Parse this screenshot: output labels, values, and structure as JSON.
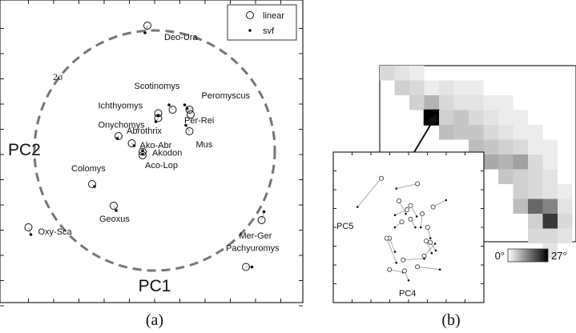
{
  "chart_data": [
    {
      "panel": "(a)",
      "type": "scatter",
      "title": "",
      "xlabel": "PC1",
      "ylabel": "PC2",
      "xlim": [
        -1.0,
        1.0
      ],
      "ylim": [
        -1.0,
        1.0
      ],
      "grid": false,
      "legend_position": "top-right",
      "annotation": "2σ",
      "series": [
        {
          "name": "linear",
          "marker": "open-circle"
        },
        {
          "name": "svf",
          "marker": "dot"
        }
      ],
      "points": [
        {
          "label": "Deo-Ura",
          "linear": [
            -0.06,
            1.04
          ],
          "svf": [
            -0.08,
            0.98
          ]
        },
        {
          "label": "Scotinomys",
          "linear": [
            0.15,
            0.34
          ],
          "svf": [
            0.12,
            0.38
          ]
        },
        {
          "label": "Peromyscus",
          "linear": [
            0.29,
            0.34
          ],
          "svf": [
            0.25,
            0.38
          ]
        },
        {
          "label": "Ichthyomys",
          "linear": [
            0.03,
            0.31
          ],
          "svf": [
            0.03,
            0.29
          ]
        },
        {
          "label": "Per-Rei",
          "linear": [
            0.3,
            0.3
          ],
          "svf": [
            0.27,
            0.35
          ]
        },
        {
          "label": "Onychomys",
          "linear": [
            0.03,
            0.27
          ],
          "svf": [
            0.01,
            0.24
          ]
        },
        {
          "label": "Mus",
          "linear": [
            0.29,
            0.16
          ],
          "svf": [
            0.26,
            0.21
          ]
        },
        {
          "label": "Abrothrix",
          "linear": [
            -0.3,
            0.12
          ],
          "svf": [
            -0.31,
            0.1
          ]
        },
        {
          "label": "Ako-Abr",
          "linear": [
            -0.19,
            0.06
          ],
          "svf": [
            -0.17,
            0.04
          ]
        },
        {
          "label": "Akodon",
          "linear": [
            -0.1,
            -0.01
          ],
          "svf": [
            -0.1,
            0.0
          ]
        },
        {
          "label": "Aco-Lop",
          "linear": [
            -0.1,
            -0.04
          ],
          "svf": [
            -0.1,
            -0.03
          ]
        },
        {
          "label": "Colomys",
          "linear": [
            -0.52,
            -0.28
          ],
          "svf": [
            -0.5,
            -0.3
          ]
        },
        {
          "label": "Geoxus",
          "linear": [
            -0.34,
            -0.46
          ],
          "svf": [
            -0.32,
            -0.5
          ]
        },
        {
          "label": "Oxy-Sca",
          "linear": [
            -1.05,
            -0.64
          ],
          "svf": [
            -1.03,
            -0.7
          ]
        },
        {
          "label": "Mer-Ger",
          "linear": [
            0.89,
            -0.58
          ],
          "svf": [
            0.91,
            -0.51
          ]
        },
        {
          "label": "Pachyuromys",
          "linear": [
            0.76,
            -0.97
          ],
          "svf": [
            0.81,
            -0.97
          ]
        }
      ]
    },
    {
      "panel": "(b)",
      "type": "heatmap",
      "title": "",
      "colorbar": {
        "min": 0,
        "max": 27,
        "min_label": "0°",
        "max_label": "27°"
      },
      "grid_size": [
        13,
        13
      ],
      "cells": [
        [
          0,
          0,
          4
        ],
        [
          1,
          0,
          3
        ],
        [
          2,
          0,
          2
        ],
        [
          1,
          1,
          5
        ],
        [
          2,
          1,
          4
        ],
        [
          3,
          1,
          2
        ],
        [
          4,
          1,
          3
        ],
        [
          5,
          1,
          2
        ],
        [
          6,
          1,
          2
        ],
        [
          2,
          2,
          5
        ],
        [
          3,
          2,
          8
        ],
        [
          4,
          2,
          4
        ],
        [
          5,
          2,
          3
        ],
        [
          6,
          2,
          3
        ],
        [
          7,
          2,
          2
        ],
        [
          8,
          2,
          2
        ],
        [
          3,
          3,
          27
        ],
        [
          4,
          3,
          5
        ],
        [
          5,
          3,
          6
        ],
        [
          6,
          3,
          4
        ],
        [
          7,
          3,
          3
        ],
        [
          8,
          3,
          2
        ],
        [
          9,
          3,
          2
        ],
        [
          4,
          4,
          7
        ],
        [
          5,
          4,
          6
        ],
        [
          6,
          4,
          6
        ],
        [
          7,
          4,
          4
        ],
        [
          8,
          4,
          3
        ],
        [
          9,
          4,
          2
        ],
        [
          10,
          4,
          2
        ],
        [
          6,
          5,
          7
        ],
        [
          7,
          5,
          6
        ],
        [
          8,
          5,
          5
        ],
        [
          9,
          5,
          4
        ],
        [
          10,
          5,
          2
        ],
        [
          11,
          5,
          2
        ],
        [
          7,
          6,
          9
        ],
        [
          8,
          6,
          8
        ],
        [
          9,
          6,
          10
        ],
        [
          10,
          6,
          4
        ],
        [
          11,
          6,
          2
        ],
        [
          8,
          7,
          6
        ],
        [
          9,
          7,
          5
        ],
        [
          10,
          7,
          4
        ],
        [
          11,
          7,
          3
        ],
        [
          9,
          8,
          5
        ],
        [
          10,
          8,
          4
        ],
        [
          11,
          8,
          3
        ],
        [
          12,
          8,
          2
        ],
        [
          9,
          9,
          7
        ],
        [
          10,
          9,
          16
        ],
        [
          11,
          9,
          13
        ],
        [
          12,
          9,
          3
        ],
        [
          10,
          10,
          5
        ],
        [
          11,
          10,
          21
        ],
        [
          12,
          10,
          4
        ],
        [
          10,
          11,
          4
        ],
        [
          11,
          11,
          4
        ],
        [
          12,
          11,
          3
        ],
        [
          11,
          12,
          3
        ]
      ],
      "highlighted_cell": [
        3,
        3
      ]
    },
    {
      "panel": "(b) inset",
      "type": "scatter",
      "title": "",
      "xlabel": "PC4",
      "ylabel": "PC5",
      "xlim": [
        -1.0,
        1.0
      ],
      "ylim": [
        -1.0,
        1.0
      ],
      "pairs": [
        {
          "linear": [
            -0.4,
            0.72
          ],
          "svf": [
            -0.75,
            0.3
          ]
        },
        {
          "linear": [
            0.13,
            0.64
          ],
          "svf": [
            -0.18,
            0.57
          ]
        },
        {
          "linear": [
            0.36,
            0.3
          ],
          "svf": [
            0.55,
            0.4
          ]
        },
        {
          "linear": [
            -0.14,
            0.39
          ],
          "svf": [
            -0.04,
            0.2
          ]
        },
        {
          "linear": [
            0.03,
            0.32
          ],
          "svf": [
            0.12,
            0.16
          ]
        },
        {
          "linear": [
            -0.02,
            0.26
          ],
          "svf": [
            -0.2,
            0.18
          ]
        },
        {
          "linear": [
            0.03,
            0.12
          ],
          "svf": [
            0.1,
            0.0
          ]
        },
        {
          "linear": [
            0.2,
            0.2
          ],
          "svf": [
            0.18,
            0.0
          ]
        },
        {
          "linear": [
            -0.1,
            0.08
          ],
          "svf": [
            -0.2,
            0.0
          ]
        },
        {
          "linear": [
            0.28,
            0.0
          ],
          "svf": [
            0.32,
            -0.16
          ]
        },
        {
          "linear": [
            0.26,
            -0.2
          ],
          "svf": [
            0.34,
            -0.38
          ]
        },
        {
          "linear": [
            -0.28,
            -0.16
          ],
          "svf": [
            -0.2,
            -0.36
          ]
        },
        {
          "linear": [
            -0.32,
            -0.16
          ],
          "svf": [
            -0.18,
            -0.52
          ]
        },
        {
          "linear": [
            0.32,
            -0.22
          ],
          "svf": [
            0.4,
            -0.34
          ]
        },
        {
          "linear": [
            0.23,
            -0.42
          ],
          "svf": [
            0.39,
            -0.24
          ]
        },
        {
          "linear": [
            -0.08,
            -0.48
          ],
          "svf": [
            0.23,
            -0.46
          ]
        },
        {
          "linear": [
            0.13,
            -0.58
          ],
          "svf": [
            0.46,
            -0.62
          ]
        },
        {
          "linear": [
            -0.28,
            -0.62
          ],
          "svf": [
            -0.08,
            -0.66
          ]
        },
        {
          "linear": [
            -0.06,
            -0.64
          ],
          "svf": [
            0.0,
            -0.78
          ]
        }
      ]
    }
  ]
}
